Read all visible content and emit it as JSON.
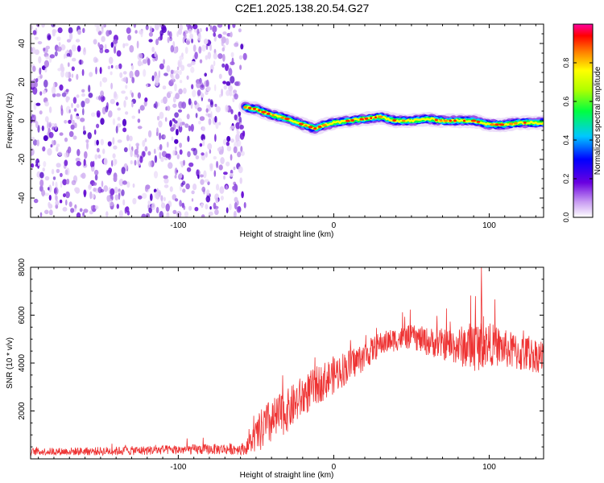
{
  "title": "C2E1.2025.138.20.54.G27",
  "chart_data": [
    {
      "type": "heatmap",
      "xlabel": "Height of straight line (km)",
      "ylabel": "Frequency (Hz)",
      "xlim": [
        -195,
        135
      ],
      "ylim": [
        -50,
        50
      ],
      "x_ticks": [
        -100,
        0,
        100
      ],
      "y_ticks": [
        -40,
        -20,
        0,
        20,
        40
      ],
      "colorbar": {
        "label": "Normalized spectral amplitude",
        "range": [
          0.0,
          1.0
        ],
        "ticks": [
          "0.0",
          "0.2",
          "0.4",
          "0.6",
          "0.8"
        ]
      },
      "noise_region_x": [
        -195,
        -57
      ],
      "ridge": {
        "x": [
          -57,
          -50,
          -40,
          -30,
          -20,
          -12,
          -5,
          0,
          10,
          20,
          30,
          40,
          50,
          60,
          70,
          80,
          90,
          100,
          110,
          120,
          135
        ],
        "frequency": [
          7,
          6,
          3,
          1,
          -2,
          -4,
          -2,
          -1,
          0,
          1,
          2,
          0,
          0,
          1,
          0,
          0,
          0,
          -2,
          -2,
          -1,
          -1
        ]
      }
    },
    {
      "type": "line",
      "xlabel": "Height of straight line (km)",
      "ylabel": "SNR (10 * v/v)",
      "xlim": [
        -195,
        135
      ],
      "ylim": [
        0,
        8000
      ],
      "x_ticks": [
        -100,
        0,
        100
      ],
      "y_ticks": [
        2000,
        4000,
        6000,
        8000
      ],
      "color": "#ee3333",
      "series_envelope": {
        "x": [
          -195,
          -150,
          -100,
          -57,
          -45,
          -30,
          -20,
          -10,
          0,
          10,
          20,
          30,
          40,
          50,
          60,
          70,
          80,
          90,
          100,
          110,
          120,
          135
        ],
        "mean": [
          300,
          320,
          380,
          420,
          1300,
          2000,
          2600,
          3100,
          3500,
          3900,
          4300,
          4800,
          5000,
          5100,
          4900,
          4800,
          4700,
          4700,
          4800,
          4600,
          4400,
          4300
        ],
        "spread": [
          150,
          180,
          200,
          250,
          1000,
          900,
          900,
          800,
          800,
          700,
          600,
          500,
          500,
          500,
          600,
          650,
          800,
          1100,
          900,
          800,
          800,
          700
        ]
      },
      "peak": {
        "x": 95,
        "y": 8000
      }
    }
  ]
}
